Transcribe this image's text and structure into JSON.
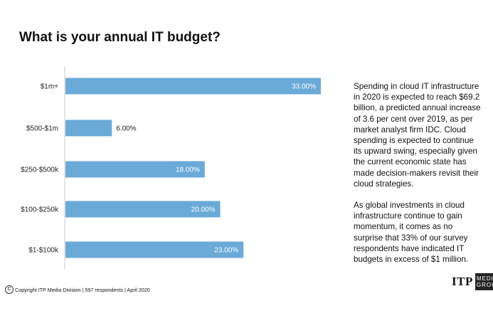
{
  "chart_data": {
    "type": "bar",
    "orientation": "horizontal",
    "title": "What is your annual IT budget?",
    "categories": [
      "$1m+",
      "$500-$1m",
      "$250-$500k",
      "$100-$250k",
      "$1-$100k"
    ],
    "values": [
      33.0,
      6.0,
      18.0,
      20.0,
      23.0
    ],
    "data_labels": [
      "33.00%",
      "6.00%",
      "18.00%",
      "20.00%",
      "23.00%"
    ],
    "xlim": [
      0,
      33
    ],
    "grid": false,
    "bar_color": "#6aaad8"
  },
  "side_text": {
    "paragraph1": "Spending in cloud IT infrastructure in 2020 is expected to reach $69.2 billion, a predicted annual increase of 3.6 per cent over 2019, as per market analyst firm IDC. Cloud spending is expected to continue its upward swing, especially given the current economic state has made decision-makers revisit their cloud strategies.",
    "paragraph2": "As global investments in cloud infrastructure continue to gain momentum, it comes as no surprise that 33% of our survey respondents have indicated IT budgets in excess of $1 million."
  },
  "footer": {
    "copyright_symbol": "C",
    "text": "Copyright ITP Media Division | 597 respondents | April 2020"
  },
  "logo": {
    "main": "ITP",
    "line1": "MEDIA",
    "line2": "GROUP"
  }
}
